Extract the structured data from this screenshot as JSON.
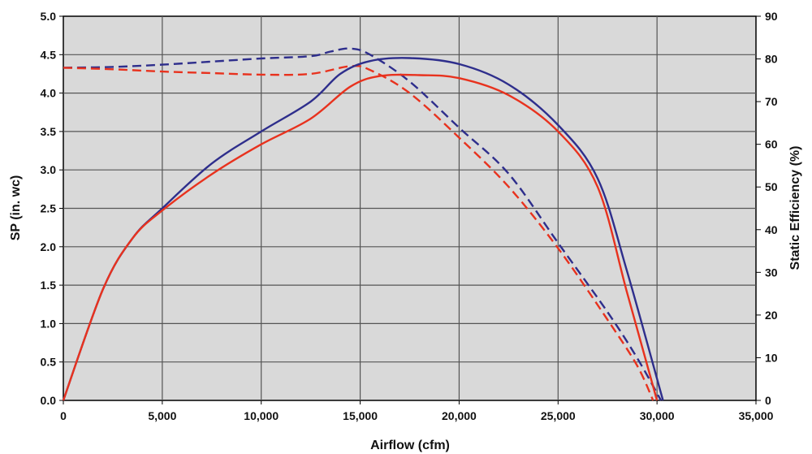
{
  "chart_data": {
    "type": "line",
    "title": "",
    "xlabel": "Airflow (cfm)",
    "ylabel_left": "SP (in. wc)",
    "ylabel_right": "Static Efficiency (%)",
    "xlim": [
      0,
      35000
    ],
    "ylim_left": [
      0,
      5.0
    ],
    "ylim_right": [
      0,
      90
    ],
    "x_ticks": [
      "0",
      "5,000",
      "10,000",
      "15,000",
      "20,000",
      "25,000",
      "30,000",
      "35,000"
    ],
    "y_left_ticks": [
      "0.0",
      "0.5",
      "1.0",
      "1.5",
      "2.0",
      "2.5",
      "3.0",
      "3.5",
      "4.0",
      "4.5",
      "5.0"
    ],
    "y_right_ticks": [
      "0",
      "10",
      "20",
      "30",
      "40",
      "50",
      "60",
      "70",
      "80",
      "90"
    ],
    "grid": true,
    "legend": "none",
    "series": [
      {
        "axis": "left",
        "color": "#2e2e8c",
        "dash": "dashed",
        "points": [
          [
            0,
            4.33
          ],
          [
            2500,
            4.34
          ],
          [
            5000,
            4.37
          ],
          [
            7500,
            4.41
          ],
          [
            10000,
            4.45
          ],
          [
            12500,
            4.48
          ],
          [
            13500,
            4.54
          ],
          [
            14500,
            4.58
          ],
          [
            15500,
            4.5
          ],
          [
            17500,
            4.15
          ],
          [
            20000,
            3.55
          ],
          [
            22500,
            2.95
          ],
          [
            25000,
            2.05
          ],
          [
            27500,
            1.15
          ],
          [
            29000,
            0.55
          ],
          [
            30200,
            0.0
          ]
        ]
      },
      {
        "axis": "left",
        "color": "#e8321e",
        "dash": "dashed",
        "points": [
          [
            0,
            4.33
          ],
          [
            2500,
            4.31
          ],
          [
            5000,
            4.28
          ],
          [
            7500,
            4.26
          ],
          [
            10000,
            4.24
          ],
          [
            12500,
            4.25
          ],
          [
            14500,
            4.35
          ],
          [
            15500,
            4.3
          ],
          [
            17500,
            4.0
          ],
          [
            20000,
            3.42
          ],
          [
            22500,
            2.78
          ],
          [
            25000,
            1.98
          ],
          [
            27500,
            1.05
          ],
          [
            29000,
            0.45
          ],
          [
            29800,
            0.0
          ]
        ]
      },
      {
        "axis": "right",
        "color": "#2e2e8c",
        "dash": "solid",
        "points": [
          [
            0,
            0
          ],
          [
            2000,
            26
          ],
          [
            3500,
            38
          ],
          [
            5000,
            45
          ],
          [
            7500,
            55.5
          ],
          [
            10000,
            63
          ],
          [
            12500,
            70
          ],
          [
            14000,
            76.5
          ],
          [
            15500,
            79.5
          ],
          [
            17500,
            80.2
          ],
          [
            20000,
            78.8
          ],
          [
            22500,
            74
          ],
          [
            25000,
            64.5
          ],
          [
            27000,
            52
          ],
          [
            28500,
            30
          ],
          [
            30300,
            0
          ]
        ]
      },
      {
        "axis": "right",
        "color": "#e8321e",
        "dash": "solid",
        "points": [
          [
            0,
            0
          ],
          [
            2000,
            26
          ],
          [
            3500,
            38
          ],
          [
            5000,
            44.5
          ],
          [
            7500,
            53
          ],
          [
            10000,
            60
          ],
          [
            12500,
            66
          ],
          [
            14500,
            73.5
          ],
          [
            16000,
            76
          ],
          [
            18000,
            76.2
          ],
          [
            20000,
            75.5
          ],
          [
            22500,
            71.5
          ],
          [
            25000,
            63
          ],
          [
            27000,
            50
          ],
          [
            28500,
            25
          ],
          [
            30000,
            0
          ]
        ]
      }
    ]
  }
}
